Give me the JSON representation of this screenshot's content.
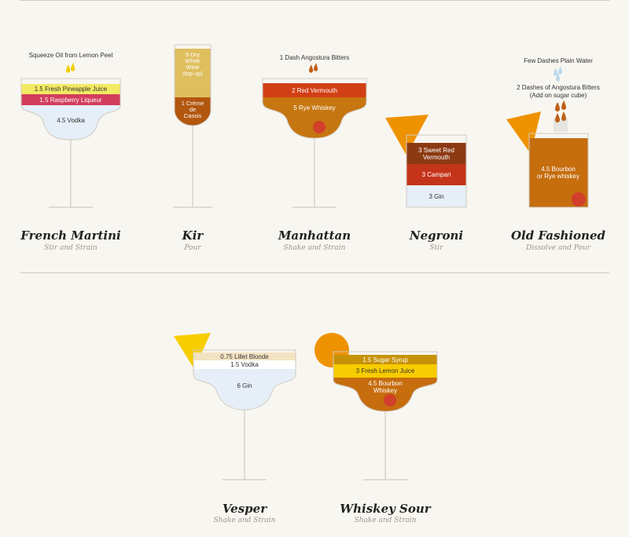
{
  "colors": {
    "background": "#f8f6f0",
    "pineapple": "#f2ea63",
    "raspberry": "#d33d5c",
    "vodka": "#e6eff7",
    "white_wine": "#dfbe5e",
    "creme_de_cassis": "#b2570e",
    "red_vermouth": "#d23f15",
    "rye_whiskey": "#c67610",
    "sweet_red_vermouth": "#8c3a12",
    "campari": "#c4341a",
    "gin": "#e6eff7",
    "bourbon": "#c66d0e",
    "cherry": "#d23f2a",
    "lemon": "#f8cd00",
    "orange": "#ef9200",
    "lillet": "#f3e3c2",
    "sugar_syrup": "#c79208",
    "lemon_juice": "#f7cc00"
  },
  "cocktails": {
    "french_martini": {
      "name": "French Martini",
      "method": "Stir and Strain",
      "garnish": "Squeeze Oil from Lemon Peel",
      "layers": [
        "1.5 Fresh Pineapple Juice",
        "1.5 Raspberry Liqueur",
        "4.5 Vodka"
      ]
    },
    "kir": {
      "name": "Kir",
      "method": "Pour",
      "layers": [
        "9 Dry",
        "White",
        "Wine",
        "(top up)",
        "1 Crème",
        "de",
        "Cassis"
      ]
    },
    "manhattan": {
      "name": "Manhattan",
      "method": "Shake and Strain",
      "garnish": "1 Dash Angostura Bitters",
      "layers": [
        "2 Red Vermouth",
        "5 Rye Whiskey"
      ]
    },
    "negroni": {
      "name": "Negroni",
      "method": "Stir",
      "layers": [
        "3 Sweet Red",
        "Vermouth",
        "3 Campari",
        "3 Gin"
      ]
    },
    "old_fashioned": {
      "name": "Old Fashioned",
      "method": "Dissolve and Pour",
      "water": "Few Dashes Plain Water",
      "bitters": [
        "2 Dashes of Angostura Bitters",
        "(Add on sugar cube)"
      ],
      "layers": [
        "4.5 Bourbon",
        "or Rye whiskey"
      ]
    },
    "vesper": {
      "name": "Vesper",
      "method": "Shake and Strain",
      "layers": [
        "0.75 Lillet Blonde",
        "1.5 Vodka",
        "6 Gin"
      ]
    },
    "whiskey_sour": {
      "name": "Whiskey Sour",
      "method": "Shake and Strain",
      "layers": [
        "1.5 Sugar Syrup",
        "3 Fresh Lemon Juice",
        "4.5 Bourbon",
        "Whiskey"
      ]
    }
  }
}
